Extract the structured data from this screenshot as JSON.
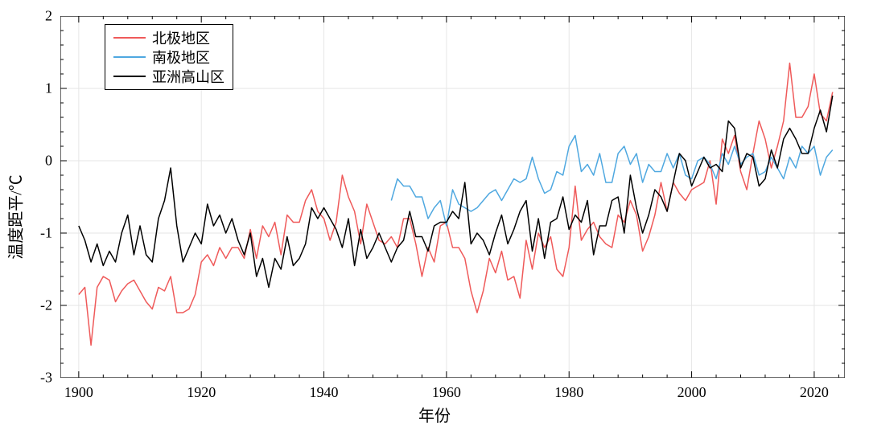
{
  "chart": {
    "type": "line",
    "x_label": "年份",
    "y_label": "温度距平/℃",
    "label_fontsize": 20,
    "tick_fontsize": 18,
    "xlim": [
      1897,
      2025
    ],
    "ylim": [
      -3,
      2
    ],
    "xticks": [
      1900,
      1920,
      1940,
      1960,
      1980,
      2000,
      2020
    ],
    "yticks": [
      -3,
      -2,
      -1,
      0,
      1,
      2
    ],
    "minor_tick_interval_x": 4,
    "minor_tick_interval_y": 0.2,
    "background_color": "#ffffff",
    "grid_color": "#e6e6e6",
    "grid_line_width": 1,
    "axis_color": "#000000",
    "axis_line_width": 1.2,
    "series_line_width": 1.5,
    "legend": {
      "border_color": "#000000",
      "background": "#ffffff",
      "position": "upper-left",
      "items": [
        {
          "label": "北极地区",
          "color": "#ef5a5a"
        },
        {
          "label": "南极地区",
          "color": "#4fa8e0"
        },
        {
          "label": "亚洲高山区",
          "color": "#000000"
        }
      ]
    },
    "series": [
      {
        "name": "北极地区",
        "color": "#ef5a5a",
        "x": [
          1900,
          1901,
          1902,
          1903,
          1904,
          1905,
          1906,
          1907,
          1908,
          1909,
          1910,
          1911,
          1912,
          1913,
          1914,
          1915,
          1916,
          1917,
          1918,
          1919,
          1920,
          1921,
          1922,
          1923,
          1924,
          1925,
          1926,
          1927,
          1928,
          1929,
          1930,
          1931,
          1932,
          1933,
          1934,
          1935,
          1936,
          1937,
          1938,
          1939,
          1940,
          1941,
          1942,
          1943,
          1944,
          1945,
          1946,
          1947,
          1948,
          1949,
          1950,
          1951,
          1952,
          1953,
          1954,
          1955,
          1956,
          1957,
          1958,
          1959,
          1960,
          1961,
          1962,
          1963,
          1964,
          1965,
          1966,
          1967,
          1968,
          1969,
          1970,
          1971,
          1972,
          1973,
          1974,
          1975,
          1976,
          1977,
          1978,
          1979,
          1980,
          1981,
          1982,
          1983,
          1984,
          1985,
          1986,
          1987,
          1988,
          1989,
          1990,
          1991,
          1992,
          1993,
          1994,
          1995,
          1996,
          1997,
          1998,
          1999,
          2000,
          2001,
          2002,
          2003,
          2004,
          2005,
          2006,
          2007,
          2008,
          2009,
          2010,
          2011,
          2012,
          2013,
          2014,
          2015,
          2016,
          2017,
          2018,
          2019,
          2020,
          2021,
          2022,
          2023
        ],
        "y": [
          -1.85,
          -1.75,
          -2.55,
          -1.75,
          -1.6,
          -1.65,
          -1.95,
          -1.8,
          -1.7,
          -1.65,
          -1.8,
          -1.95,
          -2.05,
          -1.75,
          -1.8,
          -1.6,
          -2.1,
          -2.1,
          -2.05,
          -1.85,
          -1.4,
          -1.3,
          -1.45,
          -1.2,
          -1.35,
          -1.2,
          -1.2,
          -1.35,
          -0.95,
          -1.35,
          -0.9,
          -1.05,
          -0.85,
          -1.3,
          -0.75,
          -0.85,
          -0.85,
          -0.55,
          -0.4,
          -0.7,
          -0.8,
          -1.1,
          -0.85,
          -0.2,
          -0.5,
          -0.7,
          -1.15,
          -0.6,
          -0.85,
          -1.1,
          -1.15,
          -1.05,
          -1.2,
          -0.8,
          -0.8,
          -1.15,
          -1.6,
          -1.2,
          -1.4,
          -0.9,
          -0.85,
          -1.2,
          -1.2,
          -1.35,
          -1.8,
          -2.1,
          -1.8,
          -1.35,
          -1.55,
          -1.25,
          -1.65,
          -1.6,
          -1.9,
          -1.1,
          -1.5,
          -1.0,
          -1.2,
          -1.05,
          -1.5,
          -1.6,
          -1.2,
          -0.35,
          -1.1,
          -0.95,
          -0.85,
          -1.05,
          -1.15,
          -1.2,
          -0.75,
          -0.85,
          -0.55,
          -0.75,
          -1.25,
          -1.05,
          -0.75,
          -0.3,
          -0.7,
          -0.3,
          -0.45,
          -0.55,
          -0.4,
          -0.35,
          -0.3,
          0.0,
          -0.6,
          0.3,
          0.1,
          0.35,
          -0.15,
          -0.4,
          0.1,
          0.55,
          0.3,
          -0.1,
          0.2,
          0.55,
          1.35,
          0.6,
          0.6,
          0.75,
          1.2,
          0.65,
          0.55,
          0.95
        ]
      },
      {
        "name": "南极地区",
        "color": "#4fa8e0",
        "x": [
          1951,
          1952,
          1953,
          1954,
          1955,
          1956,
          1957,
          1958,
          1959,
          1960,
          1961,
          1962,
          1963,
          1964,
          1965,
          1966,
          1967,
          1968,
          1969,
          1970,
          1971,
          1972,
          1973,
          1974,
          1975,
          1976,
          1977,
          1978,
          1979,
          1980,
          1981,
          1982,
          1983,
          1984,
          1985,
          1986,
          1987,
          1988,
          1989,
          1990,
          1991,
          1992,
          1993,
          1994,
          1995,
          1996,
          1997,
          1998,
          1999,
          2000,
          2001,
          2002,
          2003,
          2004,
          2005,
          2006,
          2007,
          2008,
          2009,
          2010,
          2011,
          2012,
          2013,
          2014,
          2015,
          2016,
          2017,
          2018,
          2019,
          2020,
          2021,
          2022,
          2023
        ],
        "y": [
          -0.55,
          -0.25,
          -0.35,
          -0.35,
          -0.5,
          -0.5,
          -0.8,
          -0.65,
          -0.55,
          -0.9,
          -0.4,
          -0.6,
          -0.65,
          -0.7,
          -0.65,
          -0.55,
          -0.45,
          -0.4,
          -0.55,
          -0.4,
          -0.25,
          -0.3,
          -0.25,
          0.05,
          -0.25,
          -0.45,
          -0.4,
          -0.15,
          -0.2,
          0.2,
          0.35,
          -0.15,
          -0.05,
          -0.2,
          0.1,
          -0.3,
          -0.3,
          0.1,
          0.2,
          -0.05,
          0.1,
          -0.3,
          -0.05,
          -0.15,
          -0.15,
          0.1,
          -0.1,
          0.1,
          -0.2,
          -0.25,
          0.0,
          0.05,
          -0.05,
          -0.25,
          0.1,
          -0.05,
          0.2,
          -0.05,
          0.05,
          0.1,
          -0.2,
          -0.15,
          0.05,
          -0.1,
          -0.25,
          0.05,
          -0.1,
          0.2,
          0.1,
          0.2,
          -0.2,
          0.05,
          0.15
        ]
      },
      {
        "name": "亚洲高山区",
        "color": "#000000",
        "x": [
          1900,
          1901,
          1902,
          1903,
          1904,
          1905,
          1906,
          1907,
          1908,
          1909,
          1910,
          1911,
          1912,
          1913,
          1914,
          1915,
          1916,
          1917,
          1918,
          1919,
          1920,
          1921,
          1922,
          1923,
          1924,
          1925,
          1926,
          1927,
          1928,
          1929,
          1930,
          1931,
          1932,
          1933,
          1934,
          1935,
          1936,
          1937,
          1938,
          1939,
          1940,
          1941,
          1942,
          1943,
          1944,
          1945,
          1946,
          1947,
          1948,
          1949,
          1950,
          1951,
          1952,
          1953,
          1954,
          1955,
          1956,
          1957,
          1958,
          1959,
          1960,
          1961,
          1962,
          1963,
          1964,
          1965,
          1966,
          1967,
          1968,
          1969,
          1970,
          1971,
          1972,
          1973,
          1974,
          1975,
          1976,
          1977,
          1978,
          1979,
          1980,
          1981,
          1982,
          1983,
          1984,
          1985,
          1986,
          1987,
          1988,
          1989,
          1990,
          1991,
          1992,
          1993,
          1994,
          1995,
          1996,
          1997,
          1998,
          1999,
          2000,
          2001,
          2002,
          2003,
          2004,
          2005,
          2006,
          2007,
          2008,
          2009,
          2010,
          2011,
          2012,
          2013,
          2014,
          2015,
          2016,
          2017,
          2018,
          2019,
          2020,
          2021,
          2022,
          2023
        ],
        "y": [
          -0.9,
          -1.1,
          -1.4,
          -1.15,
          -1.45,
          -1.25,
          -1.4,
          -1.0,
          -0.75,
          -1.3,
          -0.9,
          -1.3,
          -1.4,
          -0.8,
          -0.55,
          -0.1,
          -0.9,
          -1.4,
          -1.2,
          -1.0,
          -1.15,
          -0.6,
          -0.9,
          -0.75,
          -1.0,
          -0.8,
          -1.1,
          -1.3,
          -1.0,
          -1.6,
          -1.35,
          -1.75,
          -1.35,
          -1.5,
          -1.05,
          -1.45,
          -1.35,
          -1.15,
          -0.65,
          -0.8,
          -0.65,
          -0.8,
          -0.95,
          -1.2,
          -0.8,
          -1.45,
          -0.95,
          -1.35,
          -1.2,
          -1.0,
          -1.2,
          -1.4,
          -1.2,
          -1.1,
          -0.7,
          -1.05,
          -1.05,
          -1.25,
          -0.9,
          -0.85,
          -0.85,
          -0.7,
          -0.8,
          -0.3,
          -1.15,
          -1.0,
          -1.1,
          -1.3,
          -1.0,
          -0.75,
          -1.15,
          -0.95,
          -0.7,
          -0.55,
          -1.25,
          -0.8,
          -1.35,
          -0.85,
          -0.8,
          -0.5,
          -0.95,
          -0.75,
          -0.85,
          -0.55,
          -1.3,
          -0.9,
          -0.9,
          -0.55,
          -0.5,
          -1.0,
          -0.2,
          -0.65,
          -1.0,
          -0.75,
          -0.4,
          -0.5,
          -0.7,
          -0.3,
          0.1,
          0.0,
          -0.35,
          -0.15,
          0.05,
          -0.1,
          -0.05,
          -0.15,
          0.55,
          0.45,
          -0.1,
          0.1,
          0.05,
          -0.35,
          -0.25,
          0.15,
          -0.1,
          0.3,
          0.45,
          0.3,
          0.1,
          0.1,
          0.45,
          0.7,
          0.4,
          0.9
        ]
      }
    ]
  }
}
